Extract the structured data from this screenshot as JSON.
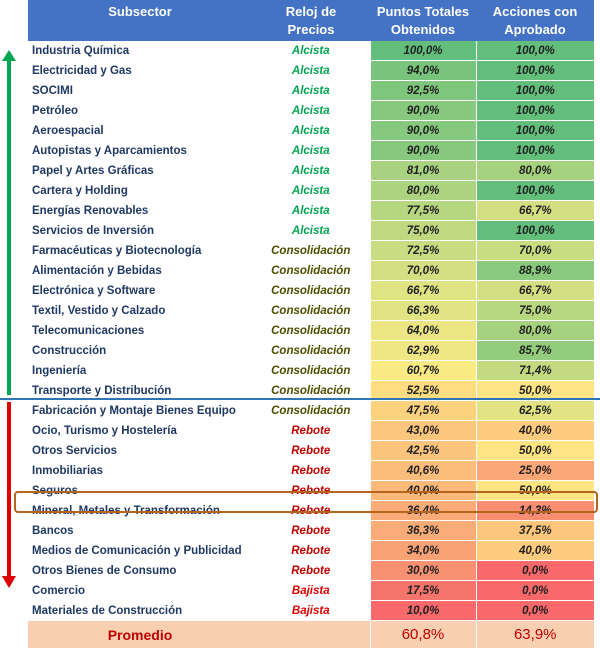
{
  "headers": {
    "subsector": "Subsector",
    "reloj_line1": "Reloj de",
    "reloj_line2": "Precios",
    "puntos_line1": "Puntos Totales",
    "puntos_line2": "Obtenidos",
    "acciones_line1": "Acciones con",
    "acciones_line2": "Aprobado"
  },
  "signal_colors": {
    "Alcista": "#00a651",
    "Consolidación": "#4d4d00",
    "Rebote": "#c00000",
    "Bajista": "#e00000"
  },
  "rows": [
    {
      "name": "Industria Química",
      "signal": "Alcista",
      "puntos": "100,0%",
      "acciones": "100,0%",
      "puntos_bg": "#63be7b",
      "acciones_bg": "#63be7b"
    },
    {
      "name": "Electricidad y Gas",
      "signal": "Alcista",
      "puntos": "94,0%",
      "acciones": "100,0%",
      "puntos_bg": "#78c47c",
      "acciones_bg": "#63be7b"
    },
    {
      "name": "SOCIMI",
      "signal": "Alcista",
      "puntos": "92,5%",
      "acciones": "100,0%",
      "puntos_bg": "#7fc67d",
      "acciones_bg": "#63be7b"
    },
    {
      "name": "Petróleo",
      "signal": "Alcista",
      "puntos": "90,0%",
      "acciones": "100,0%",
      "puntos_bg": "#86c87d",
      "acciones_bg": "#63be7b"
    },
    {
      "name": "Aeroespacial",
      "signal": "Alcista",
      "puntos": "90,0%",
      "acciones": "100,0%",
      "puntos_bg": "#86c87d",
      "acciones_bg": "#63be7b"
    },
    {
      "name": "Autopistas y Aparcamientos",
      "signal": "Alcista",
      "puntos": "90,0%",
      "acciones": "100,0%",
      "puntos_bg": "#86c87d",
      "acciones_bg": "#63be7b"
    },
    {
      "name": "Papel y Artes Gráficas",
      "signal": "Alcista",
      "puntos": "81,0%",
      "acciones": "80,0%",
      "puntos_bg": "#a8d27f",
      "acciones_bg": "#a6d27f"
    },
    {
      "name": "Cartera y Holding",
      "signal": "Alcista",
      "puntos": "80,0%",
      "acciones": "100,0%",
      "puntos_bg": "#acd37f",
      "acciones_bg": "#63be7b"
    },
    {
      "name": "Energías Renovables",
      "signal": "Alcista",
      "puntos": "77,5%",
      "acciones": "66,7%",
      "puntos_bg": "#b6d680",
      "acciones_bg": "#d3df82"
    },
    {
      "name": "Servicios de Inversión",
      "signal": "Alcista",
      "puntos": "75,0%",
      "acciones": "100,0%",
      "puntos_bg": "#c0d981",
      "acciones_bg": "#63be7b"
    },
    {
      "name": "Farmacéuticas y Biotecnología",
      "signal": "Consolidación",
      "puntos": "72,5%",
      "acciones": "70,0%",
      "puntos_bg": "#c9dc81",
      "acciones_bg": "#c8dc81"
    },
    {
      "name": "Alimentación y Bebidas",
      "signal": "Consolidación",
      "puntos": "70,0%",
      "acciones": "88,9%",
      "puntos_bg": "#d3df82",
      "acciones_bg": "#8aca7e"
    },
    {
      "name": "Electrónica y Software",
      "signal": "Consolidación",
      "puntos": "66,7%",
      "acciones": "66,7%",
      "puntos_bg": "#e0e383",
      "acciones_bg": "#d3df82"
    },
    {
      "name": "Textil, Vestido y Calzado",
      "signal": "Consolidación",
      "puntos": "66,3%",
      "acciones": "75,0%",
      "puntos_bg": "#e2e383",
      "acciones_bg": "#b7d780"
    },
    {
      "name": "Telecomunicaciones",
      "signal": "Consolidación",
      "puntos": "64,0%",
      "acciones": "80,0%",
      "puntos_bg": "#ebe683",
      "acciones_bg": "#a6d27f"
    },
    {
      "name": "Construcción",
      "signal": "Consolidación",
      "puntos": "62,9%",
      "acciones": "85,7%",
      "puntos_bg": "#f0e784",
      "acciones_bg": "#94cc7e"
    },
    {
      "name": "Ingeniería",
      "signal": "Consolidación",
      "puntos": "60,7%",
      "acciones": "71,4%",
      "puntos_bg": "#f9ea84",
      "acciones_bg": "#c4da80"
    },
    {
      "name": "Transporte y Distribución",
      "signal": "Consolidación",
      "puntos": "52,5%",
      "acciones": "50,0%",
      "puntos_bg": "#fedd81",
      "acciones_bg": "#ffe483"
    },
    {
      "name": "Fabricación y Montaje Bienes Equipo",
      "signal": "Consolidación",
      "puntos": "47,5%",
      "acciones": "62,5%",
      "puntos_bg": "#fdd27f",
      "acciones_bg": "#e2e383"
    },
    {
      "name": "Ocio, Turismo y Hostelería",
      "signal": "Rebote",
      "puntos": "43,0%",
      "acciones": "40,0%",
      "puntos_bg": "#fcc67c",
      "acciones_bg": "#fdcc7e"
    },
    {
      "name": "Otros Servicios",
      "signal": "Rebote",
      "puntos": "42,5%",
      "acciones": "50,0%",
      "puntos_bg": "#fcc47c",
      "acciones_bg": "#ffe483"
    },
    {
      "name": "Inmobiliarias",
      "signal": "Rebote",
      "puntos": "40,6%",
      "acciones": "25,0%",
      "puntos_bg": "#fbbd7b",
      "acciones_bg": "#fba777"
    },
    {
      "name": "Seguros",
      "signal": "Rebote",
      "puntos": "40,0%",
      "acciones": "50,0%",
      "puntos_bg": "#fbba7a",
      "acciones_bg": "#ffe483"
    },
    {
      "name": "Mineral, Metales y Transformación",
      "signal": "Rebote",
      "puntos": "36,4%",
      "acciones": "14,3%",
      "puntos_bg": "#faac78",
      "acciones_bg": "#f98e72"
    },
    {
      "name": "Bancos",
      "signal": "Rebote",
      "puntos": "36,3%",
      "acciones": "37,5%",
      "puntos_bg": "#faac78",
      "acciones_bg": "#fcc67c"
    },
    {
      "name": "Medios de Comunicación y Publicidad",
      "signal": "Rebote",
      "puntos": "34,0%",
      "acciones": "40,0%",
      "puntos_bg": "#f9a276",
      "acciones_bg": "#fdcc7e"
    },
    {
      "name": "Otros Bienes de Consumo",
      "signal": "Rebote",
      "puntos": "30,0%",
      "acciones": "0,0%",
      "puntos_bg": "#f89072",
      "acciones_bg": "#f8696b"
    },
    {
      "name": "Comercio",
      "signal": "Bajista",
      "puntos": "17,5%",
      "acciones": "0,0%",
      "puntos_bg": "#f5756d",
      "acciones_bg": "#f8696b"
    },
    {
      "name": "Materiales de Construcción",
      "signal": "Bajista",
      "puntos": "10,0%",
      "acciones": "0,0%",
      "puntos_bg": "#f8696b",
      "acciones_bg": "#f8696b"
    }
  ],
  "average": {
    "label": "Promedio",
    "puntos": "60,8%",
    "acciones": "63,9%"
  }
}
